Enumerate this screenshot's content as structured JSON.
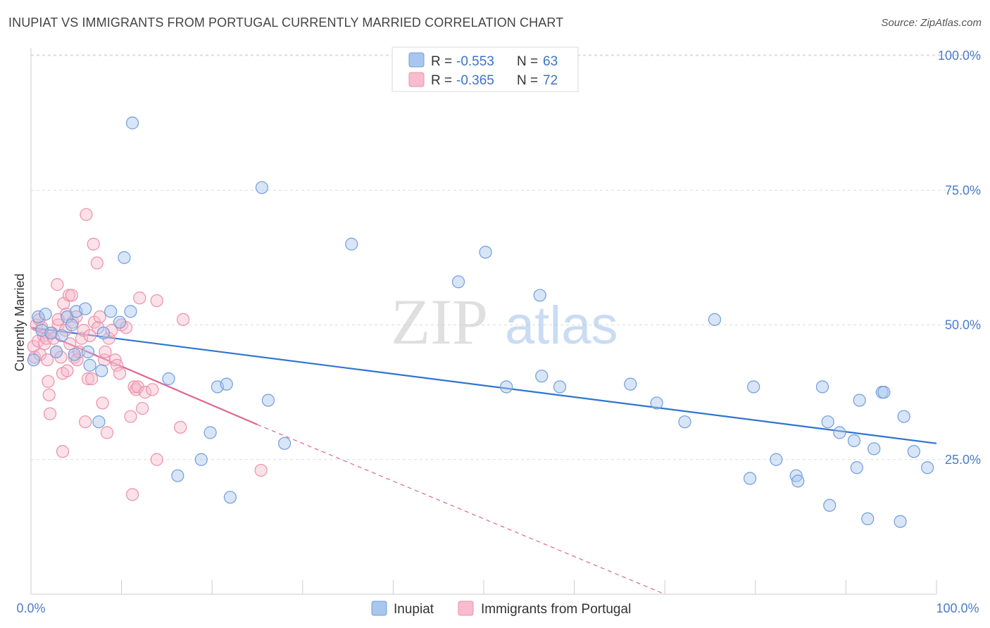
{
  "header": {
    "title": "INUPIAT VS IMMIGRANTS FROM PORTUGAL CURRENTLY MARRIED CORRELATION CHART",
    "source": "Source: ZipAtlas.com"
  },
  "watermark": {
    "zip": "ZIP",
    "atlas": "atlas"
  },
  "legend": {
    "rows": [
      {
        "r_label": "R =",
        "r_value": "-0.553",
        "n_label": "N =",
        "n_value": "63"
      },
      {
        "r_label": "R =",
        "r_value": "-0.365",
        "n_label": "N =",
        "n_value": "72"
      }
    ]
  },
  "bottom_legend": [
    "Inupiat",
    "Immigrants from Portugal"
  ],
  "colors": {
    "blue_fill": "#a9c6ee",
    "blue_stroke": "#6f9ddc",
    "blue_line": "#2f74d0",
    "pink_fill": "#f7bccd",
    "pink_stroke": "#ec8fab",
    "pink_line": "#e0658e",
    "grid": "#dcdcdc",
    "tick_text": "#4a7cc9"
  },
  "chart_data": {
    "type": "scatter",
    "title": "INUPIAT VS IMMIGRANTS FROM PORTUGAL CURRENTLY MARRIED CORRELATION CHART",
    "xlabel": "",
    "ylabel": "Currently Married",
    "xlim": [
      0,
      100
    ],
    "ylim": [
      0,
      105
    ],
    "x_tick_labels": [
      "0.0%",
      "100.0%"
    ],
    "y_ticks": [
      25,
      50,
      75,
      100
    ],
    "y_tick_labels": [
      "25.0%",
      "50.0%",
      "75.0%",
      "100.0%"
    ],
    "grid": true,
    "series": [
      {
        "name": "Inupiat",
        "color": "#6f9ddc",
        "trend": {
          "x": [
            0,
            100
          ],
          "y": [
            49.5,
            28.0
          ]
        },
        "points": [
          [
            0.3,
            43.5
          ],
          [
            0.8,
            51.5
          ],
          [
            1.2,
            49.0
          ],
          [
            1.6,
            52.0
          ],
          [
            2.2,
            48.5
          ],
          [
            2.8,
            45.0
          ],
          [
            3.4,
            48.0
          ],
          [
            4.0,
            51.5
          ],
          [
            4.5,
            50.0
          ],
          [
            4.8,
            44.5
          ],
          [
            5.0,
            52.5
          ],
          [
            6.0,
            53.0
          ],
          [
            6.3,
            45.0
          ],
          [
            6.5,
            42.5
          ],
          [
            7.5,
            32.0
          ],
          [
            7.8,
            41.5
          ],
          [
            8.0,
            48.5
          ],
          [
            8.8,
            52.5
          ],
          [
            9.8,
            50.5
          ],
          [
            10.3,
            62.5
          ],
          [
            11.0,
            52.5
          ],
          [
            11.2,
            87.5
          ],
          [
            15.2,
            40.0
          ],
          [
            16.2,
            22.0
          ],
          [
            18.8,
            25.0
          ],
          [
            19.8,
            30.0
          ],
          [
            20.6,
            38.5
          ],
          [
            21.6,
            39.0
          ],
          [
            22.0,
            18.0
          ],
          [
            25.5,
            75.5
          ],
          [
            26.2,
            36.0
          ],
          [
            28.0,
            28.0
          ],
          [
            35.4,
            65.0
          ],
          [
            47.2,
            58.0
          ],
          [
            50.2,
            63.5
          ],
          [
            52.5,
            38.5
          ],
          [
            56.2,
            55.5
          ],
          [
            56.4,
            40.5
          ],
          [
            58.4,
            38.5
          ],
          [
            66.2,
            39.0
          ],
          [
            69.1,
            35.5
          ],
          [
            72.2,
            32.0
          ],
          [
            75.5,
            51.0
          ],
          [
            79.4,
            21.5
          ],
          [
            79.8,
            38.5
          ],
          [
            82.3,
            25.0
          ],
          [
            84.5,
            22.0
          ],
          [
            84.7,
            21.0
          ],
          [
            87.4,
            38.5
          ],
          [
            88.0,
            32.0
          ],
          [
            88.2,
            16.5
          ],
          [
            89.3,
            30.0
          ],
          [
            90.9,
            28.5
          ],
          [
            91.2,
            23.5
          ],
          [
            91.5,
            36.0
          ],
          [
            92.4,
            14.0
          ],
          [
            93.1,
            27.0
          ],
          [
            94.0,
            37.5
          ],
          [
            94.2,
            37.5
          ],
          [
            96.0,
            13.5
          ],
          [
            96.4,
            33.0
          ],
          [
            97.5,
            26.5
          ],
          [
            99.0,
            23.5
          ]
        ]
      },
      {
        "name": "Immigrants from Portugal",
        "color": "#ec8fab",
        "trend": {
          "x": [
            0,
            25
          ],
          "y": [
            49.5,
            31.5
          ]
        },
        "trend_dashed": {
          "x": [
            25,
            70
          ],
          "y": [
            31.5,
            0
          ]
        },
        "points": [
          [
            0.3,
            46.0
          ],
          [
            0.4,
            44.0
          ],
          [
            0.6,
            50.0
          ],
          [
            0.8,
            47.0
          ],
          [
            0.9,
            51.0
          ],
          [
            1.0,
            44.5
          ],
          [
            1.2,
            49.5
          ],
          [
            1.4,
            48.0
          ],
          [
            1.5,
            46.5
          ],
          [
            1.7,
            47.5
          ],
          [
            1.8,
            43.5
          ],
          [
            1.9,
            39.5
          ],
          [
            2.0,
            37.0
          ],
          [
            2.1,
            33.5
          ],
          [
            2.3,
            48.5
          ],
          [
            2.5,
            47.5
          ],
          [
            2.8,
            45.0
          ],
          [
            2.9,
            57.5
          ],
          [
            3.0,
            50.0
          ],
          [
            3.3,
            44.0
          ],
          [
            3.5,
            41.0
          ],
          [
            3.5,
            26.5
          ],
          [
            3.6,
            54.0
          ],
          [
            3.8,
            49.0
          ],
          [
            3.9,
            52.0
          ],
          [
            4.0,
            41.5
          ],
          [
            4.2,
            55.5
          ],
          [
            4.3,
            46.5
          ],
          [
            4.5,
            55.5
          ],
          [
            4.6,
            50.5
          ],
          [
            4.8,
            44.0
          ],
          [
            5.0,
            51.5
          ],
          [
            5.1,
            43.5
          ],
          [
            5.3,
            45.0
          ],
          [
            5.6,
            47.5
          ],
          [
            5.8,
            49.0
          ],
          [
            6.0,
            32.0
          ],
          [
            6.1,
            70.5
          ],
          [
            6.3,
            40.0
          ],
          [
            6.5,
            48.0
          ],
          [
            6.7,
            40.0
          ],
          [
            6.9,
            65.0
          ],
          [
            7.0,
            50.5
          ],
          [
            7.3,
            61.5
          ],
          [
            7.4,
            49.5
          ],
          [
            7.6,
            51.5
          ],
          [
            7.9,
            35.5
          ],
          [
            8.1,
            43.5
          ],
          [
            8.2,
            45.0
          ],
          [
            8.4,
            30.0
          ],
          [
            8.6,
            47.5
          ],
          [
            8.9,
            49.0
          ],
          [
            9.3,
            43.5
          ],
          [
            9.5,
            42.5
          ],
          [
            9.8,
            41.0
          ],
          [
            10.0,
            50.0
          ],
          [
            10.5,
            49.5
          ],
          [
            11.0,
            33.0
          ],
          [
            11.2,
            18.5
          ],
          [
            11.4,
            38.5
          ],
          [
            11.6,
            38.0
          ],
          [
            11.8,
            38.5
          ],
          [
            12.0,
            55.0
          ],
          [
            12.3,
            34.5
          ],
          [
            12.6,
            37.5
          ],
          [
            13.4,
            38.0
          ],
          [
            13.9,
            25.0
          ],
          [
            13.9,
            54.5
          ],
          [
            16.5,
            31.0
          ],
          [
            16.8,
            51.0
          ],
          [
            25.4,
            23.0
          ],
          [
            3.0,
            51.0
          ]
        ]
      }
    ]
  }
}
